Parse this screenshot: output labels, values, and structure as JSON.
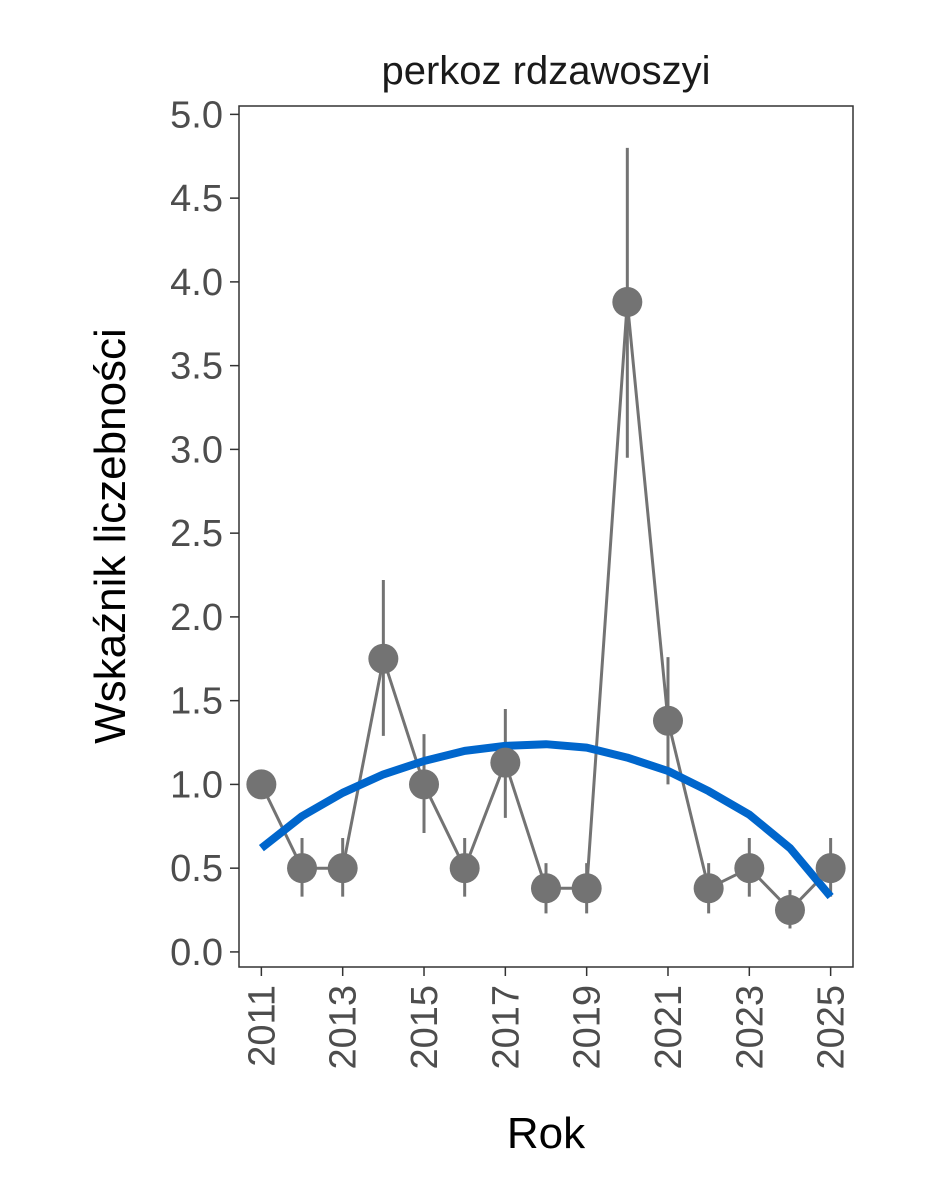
{
  "chart_data": {
    "type": "line",
    "title": "perkoz rdzawoszyi",
    "xlabel": "Rok",
    "ylabel": "Wskaźnik liczebności",
    "xlim": [
      2010.45,
      2025.55
    ],
    "ylim": [
      -0.09,
      5.05
    ],
    "x_ticks": [
      2011,
      2013,
      2015,
      2017,
      2019,
      2021,
      2023,
      2025
    ],
    "y_ticks": [
      0.0,
      0.5,
      1.0,
      1.5,
      2.0,
      2.5,
      3.0,
      3.5,
      4.0,
      4.5,
      5.0
    ],
    "grid": false,
    "series": [
      {
        "kind": "points-with-error-bars",
        "color": "#737373",
        "x": [
          2011,
          2012,
          2013,
          2014,
          2015,
          2016,
          2017,
          2018,
          2019,
          2020,
          2021,
          2022,
          2023,
          2024,
          2025
        ],
        "y": [
          1.0,
          0.5,
          0.5,
          1.75,
          1.0,
          0.5,
          1.13,
          0.38,
          0.38,
          3.88,
          1.38,
          0.38,
          0.5,
          0.25,
          0.5
        ],
        "lower": [
          null,
          0.33,
          0.33,
          1.29,
          0.71,
          0.33,
          0.8,
          0.23,
          0.23,
          2.95,
          1.0,
          0.23,
          0.33,
          0.14,
          0.33
        ],
        "upper": [
          null,
          0.68,
          0.68,
          2.22,
          1.3,
          0.68,
          1.45,
          0.53,
          0.53,
          4.8,
          1.76,
          0.53,
          0.68,
          0.37,
          0.68
        ]
      },
      {
        "kind": "trend",
        "color": "#0066cc",
        "x": [
          2011,
          2012,
          2013,
          2014,
          2015,
          2016,
          2017,
          2018,
          2019,
          2020,
          2021,
          2022,
          2023,
          2024,
          2025
        ],
        "y": [
          0.62,
          0.81,
          0.95,
          1.06,
          1.14,
          1.2,
          1.23,
          1.24,
          1.22,
          1.16,
          1.08,
          0.96,
          0.82,
          0.62,
          0.33
        ]
      }
    ]
  }
}
